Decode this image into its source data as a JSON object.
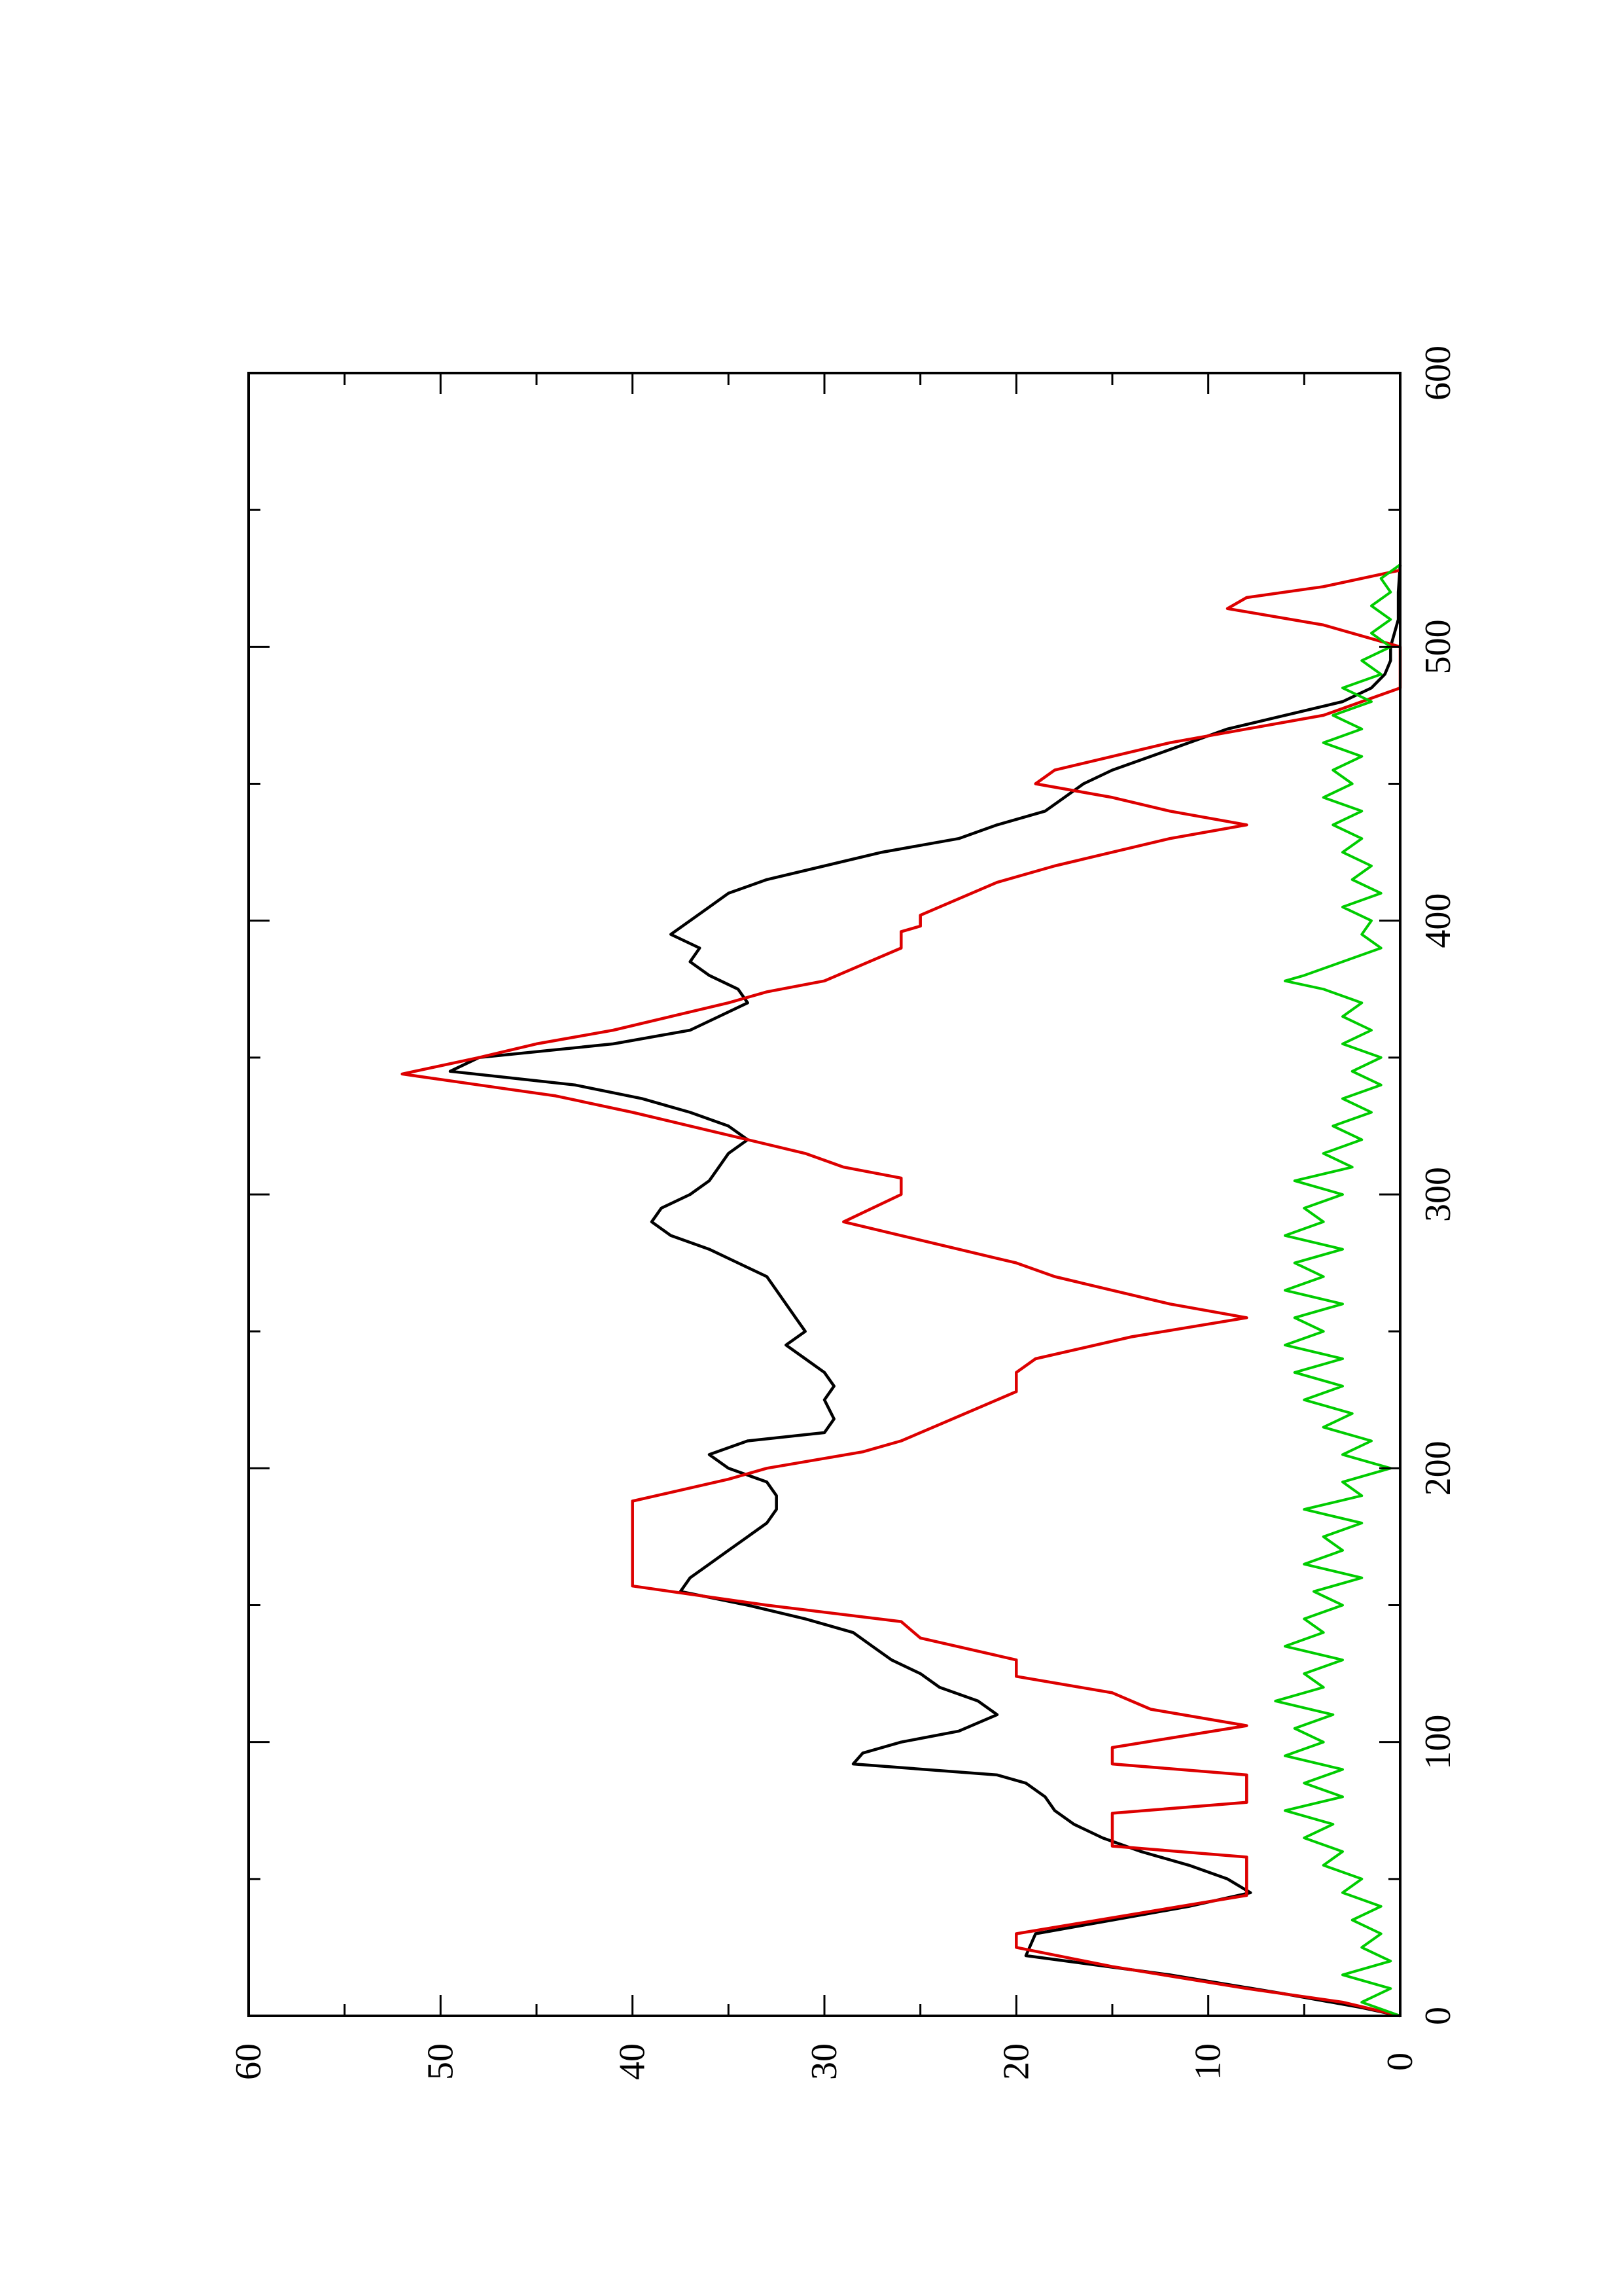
{
  "chart_data": {
    "type": "line",
    "title": "",
    "xlabel": "",
    "ylabel": "",
    "xlim": [
      0,
      600
    ],
    "ylim": [
      0,
      60
    ],
    "x_ticks": [
      0,
      100,
      200,
      300,
      400,
      500,
      600
    ],
    "x_tick_labels": [
      "0",
      "100",
      "200",
      "300",
      "400",
      "500",
      "600"
    ],
    "y_ticks": [
      0,
      10,
      20,
      30,
      40,
      50,
      60
    ],
    "y_tick_labels": [
      "0",
      "10",
      "20",
      "30",
      "40",
      "50",
      "60"
    ],
    "orientation": "rotated 90 degrees counter-clockwise",
    "grid": false,
    "series": [
      {
        "color": "#000000",
        "style": "smooth line",
        "points": [
          [
            0,
            0
          ],
          [
            3,
            2
          ],
          [
            8,
            6
          ],
          [
            15,
            12
          ],
          [
            22,
            19.5
          ],
          [
            30,
            19
          ],
          [
            35,
            15
          ],
          [
            40,
            11
          ],
          [
            45,
            7.8
          ],
          [
            50,
            9
          ],
          [
            55,
            11
          ],
          [
            60,
            13.5
          ],
          [
            65,
            15.5
          ],
          [
            70,
            17
          ],
          [
            75,
            18
          ],
          [
            80,
            18.5
          ],
          [
            85,
            19.5
          ],
          [
            88,
            21
          ],
          [
            92,
            28.5
          ],
          [
            96,
            28
          ],
          [
            100,
            26
          ],
          [
            104,
            23
          ],
          [
            110,
            21
          ],
          [
            115,
            22
          ],
          [
            120,
            24
          ],
          [
            125,
            25
          ],
          [
            130,
            26.5
          ],
          [
            135,
            27.5
          ],
          [
            140,
            28.5
          ],
          [
            145,
            31
          ],
          [
            150,
            34
          ],
          [
            155,
            37.5
          ],
          [
            160,
            37
          ],
          [
            165,
            36
          ],
          [
            170,
            35
          ],
          [
            175,
            34
          ],
          [
            180,
            33
          ],
          [
            185,
            32.5
          ],
          [
            190,
            32.5
          ],
          [
            195,
            33
          ],
          [
            200,
            35
          ],
          [
            205,
            36
          ],
          [
            210,
            34
          ],
          [
            213,
            30
          ],
          [
            218,
            29.5
          ],
          [
            225,
            30
          ],
          [
            230,
            29.5
          ],
          [
            235,
            30
          ],
          [
            240,
            31
          ],
          [
            245,
            32
          ],
          [
            250,
            31
          ],
          [
            255,
            31.5
          ],
          [
            260,
            32
          ],
          [
            265,
            32.5
          ],
          [
            270,
            33
          ],
          [
            275,
            34.5
          ],
          [
            280,
            36
          ],
          [
            285,
            38
          ],
          [
            290,
            39
          ],
          [
            295,
            38.5
          ],
          [
            300,
            37
          ],
          [
            305,
            36
          ],
          [
            310,
            35.5
          ],
          [
            315,
            35
          ],
          [
            320,
            34
          ],
          [
            325,
            35
          ],
          [
            330,
            37
          ],
          [
            335,
            39.5
          ],
          [
            340,
            43
          ],
          [
            345,
            49.5
          ],
          [
            350,
            48
          ],
          [
            355,
            41
          ],
          [
            360,
            37
          ],
          [
            365,
            35.5
          ],
          [
            370,
            34
          ],
          [
            375,
            34.5
          ],
          [
            380,
            36
          ],
          [
            385,
            37
          ],
          [
            390,
            36.5
          ],
          [
            395,
            38
          ],
          [
            400,
            37
          ],
          [
            405,
            36
          ],
          [
            410,
            35
          ],
          [
            415,
            33
          ],
          [
            420,
            30
          ],
          [
            425,
            27
          ],
          [
            430,
            23
          ],
          [
            435,
            21
          ],
          [
            440,
            18.5
          ],
          [
            445,
            17.5
          ],
          [
            450,
            16.5
          ],
          [
            455,
            15
          ],
          [
            460,
            13
          ],
          [
            465,
            11
          ],
          [
            470,
            9
          ],
          [
            475,
            6
          ],
          [
            480,
            3
          ],
          [
            485,
            1.5
          ],
          [
            490,
            0.8
          ],
          [
            495,
            0.5
          ],
          [
            500,
            0.5
          ],
          [
            505,
            0.3
          ],
          [
            510,
            0.1
          ],
          [
            520,
            0.1
          ],
          [
            530,
            0
          ]
        ]
      },
      {
        "color": "#dd0000",
        "style": "stepped line",
        "points": [
          [
            0,
            0
          ],
          [
            5,
            3
          ],
          [
            10,
            8
          ],
          [
            18,
            15
          ],
          [
            25,
            20
          ],
          [
            30,
            20
          ],
          [
            44,
            8
          ],
          [
            58,
            8
          ],
          [
            62,
            15
          ],
          [
            74,
            15
          ],
          [
            78,
            8
          ],
          [
            88,
            8
          ],
          [
            92,
            15
          ],
          [
            98,
            15
          ],
          [
            106,
            8
          ],
          [
            112,
            13
          ],
          [
            118,
            15
          ],
          [
            124,
            20
          ],
          [
            130,
            20
          ],
          [
            138,
            25
          ],
          [
            144,
            26
          ],
          [
            150,
            33
          ],
          [
            157,
            40
          ],
          [
            188,
            40
          ],
          [
            196,
            35
          ],
          [
            200,
            33
          ],
          [
            206,
            28
          ],
          [
            210,
            26
          ],
          [
            216,
            24
          ],
          [
            222,
            22
          ],
          [
            228,
            20
          ],
          [
            235,
            20
          ],
          [
            240,
            19
          ],
          [
            248,
            14
          ],
          [
            255,
            8
          ],
          [
            260,
            12
          ],
          [
            265,
            15
          ],
          [
            270,
            18
          ],
          [
            275,
            20
          ],
          [
            280,
            23
          ],
          [
            285,
            26
          ],
          [
            290,
            29
          ],
          [
            300,
            26
          ],
          [
            306,
            26
          ],
          [
            310,
            29
          ],
          [
            315,
            31
          ],
          [
            320,
            34
          ],
          [
            325,
            37
          ],
          [
            330,
            40
          ],
          [
            336,
            44
          ],
          [
            340,
            48
          ],
          [
            344,
            52
          ],
          [
            350,
            48
          ],
          [
            355,
            45
          ],
          [
            360,
            41
          ],
          [
            365,
            38
          ],
          [
            370,
            35
          ],
          [
            374,
            33
          ],
          [
            378,
            30
          ],
          [
            384,
            28
          ],
          [
            390,
            26
          ],
          [
            396,
            26
          ],
          [
            398,
            25
          ],
          [
            402,
            25
          ],
          [
            408,
            23
          ],
          [
            414,
            21
          ],
          [
            420,
            18
          ],
          [
            425,
            15
          ],
          [
            430,
            12
          ],
          [
            435,
            8
          ],
          [
            440,
            12
          ],
          [
            445,
            15
          ],
          [
            450,
            19
          ],
          [
            455,
            18
          ],
          [
            460,
            15
          ],
          [
            465,
            12
          ],
          [
            470,
            8
          ],
          [
            475,
            4
          ],
          [
            480,
            2
          ],
          [
            485,
            0
          ],
          [
            500,
            0
          ],
          [
            508,
            4
          ],
          [
            514,
            9
          ],
          [
            518,
            8
          ],
          [
            522,
            4
          ],
          [
            528,
            0
          ]
        ]
      },
      {
        "color": "#00cc00",
        "style": "noisy line",
        "points": [
          [
            0,
            0
          ],
          [
            5,
            2
          ],
          [
            10,
            0.5
          ],
          [
            15,
            3
          ],
          [
            20,
            0.5
          ],
          [
            25,
            2
          ],
          [
            30,
            1
          ],
          [
            35,
            2.5
          ],
          [
            40,
            1
          ],
          [
            45,
            3
          ],
          [
            50,
            2
          ],
          [
            55,
            4
          ],
          [
            60,
            3
          ],
          [
            65,
            5
          ],
          [
            70,
            3.5
          ],
          [
            75,
            6
          ],
          [
            80,
            3
          ],
          [
            85,
            5
          ],
          [
            90,
            3
          ],
          [
            95,
            6
          ],
          [
            100,
            4
          ],
          [
            105,
            5.5
          ],
          [
            110,
            3.5
          ],
          [
            115,
            6.5
          ],
          [
            120,
            4
          ],
          [
            125,
            5
          ],
          [
            130,
            3
          ],
          [
            135,
            6
          ],
          [
            140,
            4
          ],
          [
            145,
            5
          ],
          [
            150,
            3
          ],
          [
            155,
            4.5
          ],
          [
            160,
            2
          ],
          [
            165,
            5
          ],
          [
            170,
            3
          ],
          [
            175,
            4
          ],
          [
            180,
            2
          ],
          [
            185,
            5
          ],
          [
            190,
            2
          ],
          [
            195,
            3
          ],
          [
            200,
            0.5
          ],
          [
            205,
            3
          ],
          [
            210,
            1.5
          ],
          [
            215,
            4
          ],
          [
            220,
            2.5
          ],
          [
            225,
            5
          ],
          [
            230,
            3
          ],
          [
            235,
            5.5
          ],
          [
            240,
            3
          ],
          [
            245,
            6
          ],
          [
            250,
            4
          ],
          [
            255,
            5.5
          ],
          [
            260,
            3
          ],
          [
            265,
            6
          ],
          [
            270,
            4
          ],
          [
            275,
            5.5
          ],
          [
            280,
            3
          ],
          [
            285,
            6
          ],
          [
            290,
            4
          ],
          [
            295,
            5
          ],
          [
            300,
            3
          ],
          [
            305,
            5.5
          ],
          [
            310,
            2.5
          ],
          [
            315,
            4
          ],
          [
            320,
            2
          ],
          [
            325,
            3.5
          ],
          [
            330,
            1.5
          ],
          [
            335,
            3
          ],
          [
            340,
            1
          ],
          [
            345,
            2.5
          ],
          [
            350,
            1
          ],
          [
            355,
            3
          ],
          [
            360,
            1.5
          ],
          [
            365,
            3
          ],
          [
            370,
            2
          ],
          [
            375,
            4
          ],
          [
            378,
            6
          ],
          [
            380,
            5
          ],
          [
            385,
            3
          ],
          [
            390,
            1
          ],
          [
            395,
            2
          ],
          [
            400,
            1.5
          ],
          [
            405,
            3
          ],
          [
            410,
            1
          ],
          [
            415,
            2.5
          ],
          [
            420,
            1.5
          ],
          [
            425,
            3
          ],
          [
            430,
            2
          ],
          [
            435,
            3.5
          ],
          [
            440,
            2
          ],
          [
            445,
            4
          ],
          [
            450,
            2.5
          ],
          [
            455,
            3.5
          ],
          [
            460,
            2
          ],
          [
            465,
            4
          ],
          [
            470,
            2
          ],
          [
            475,
            3.5
          ],
          [
            480,
            1.5
          ],
          [
            485,
            3
          ],
          [
            490,
            1
          ],
          [
            495,
            2
          ],
          [
            500,
            0.5
          ],
          [
            505,
            1.5
          ],
          [
            510,
            0.5
          ],
          [
            515,
            1.5
          ],
          [
            520,
            0.5
          ],
          [
            525,
            1
          ],
          [
            530,
            0
          ]
        ]
      }
    ]
  }
}
